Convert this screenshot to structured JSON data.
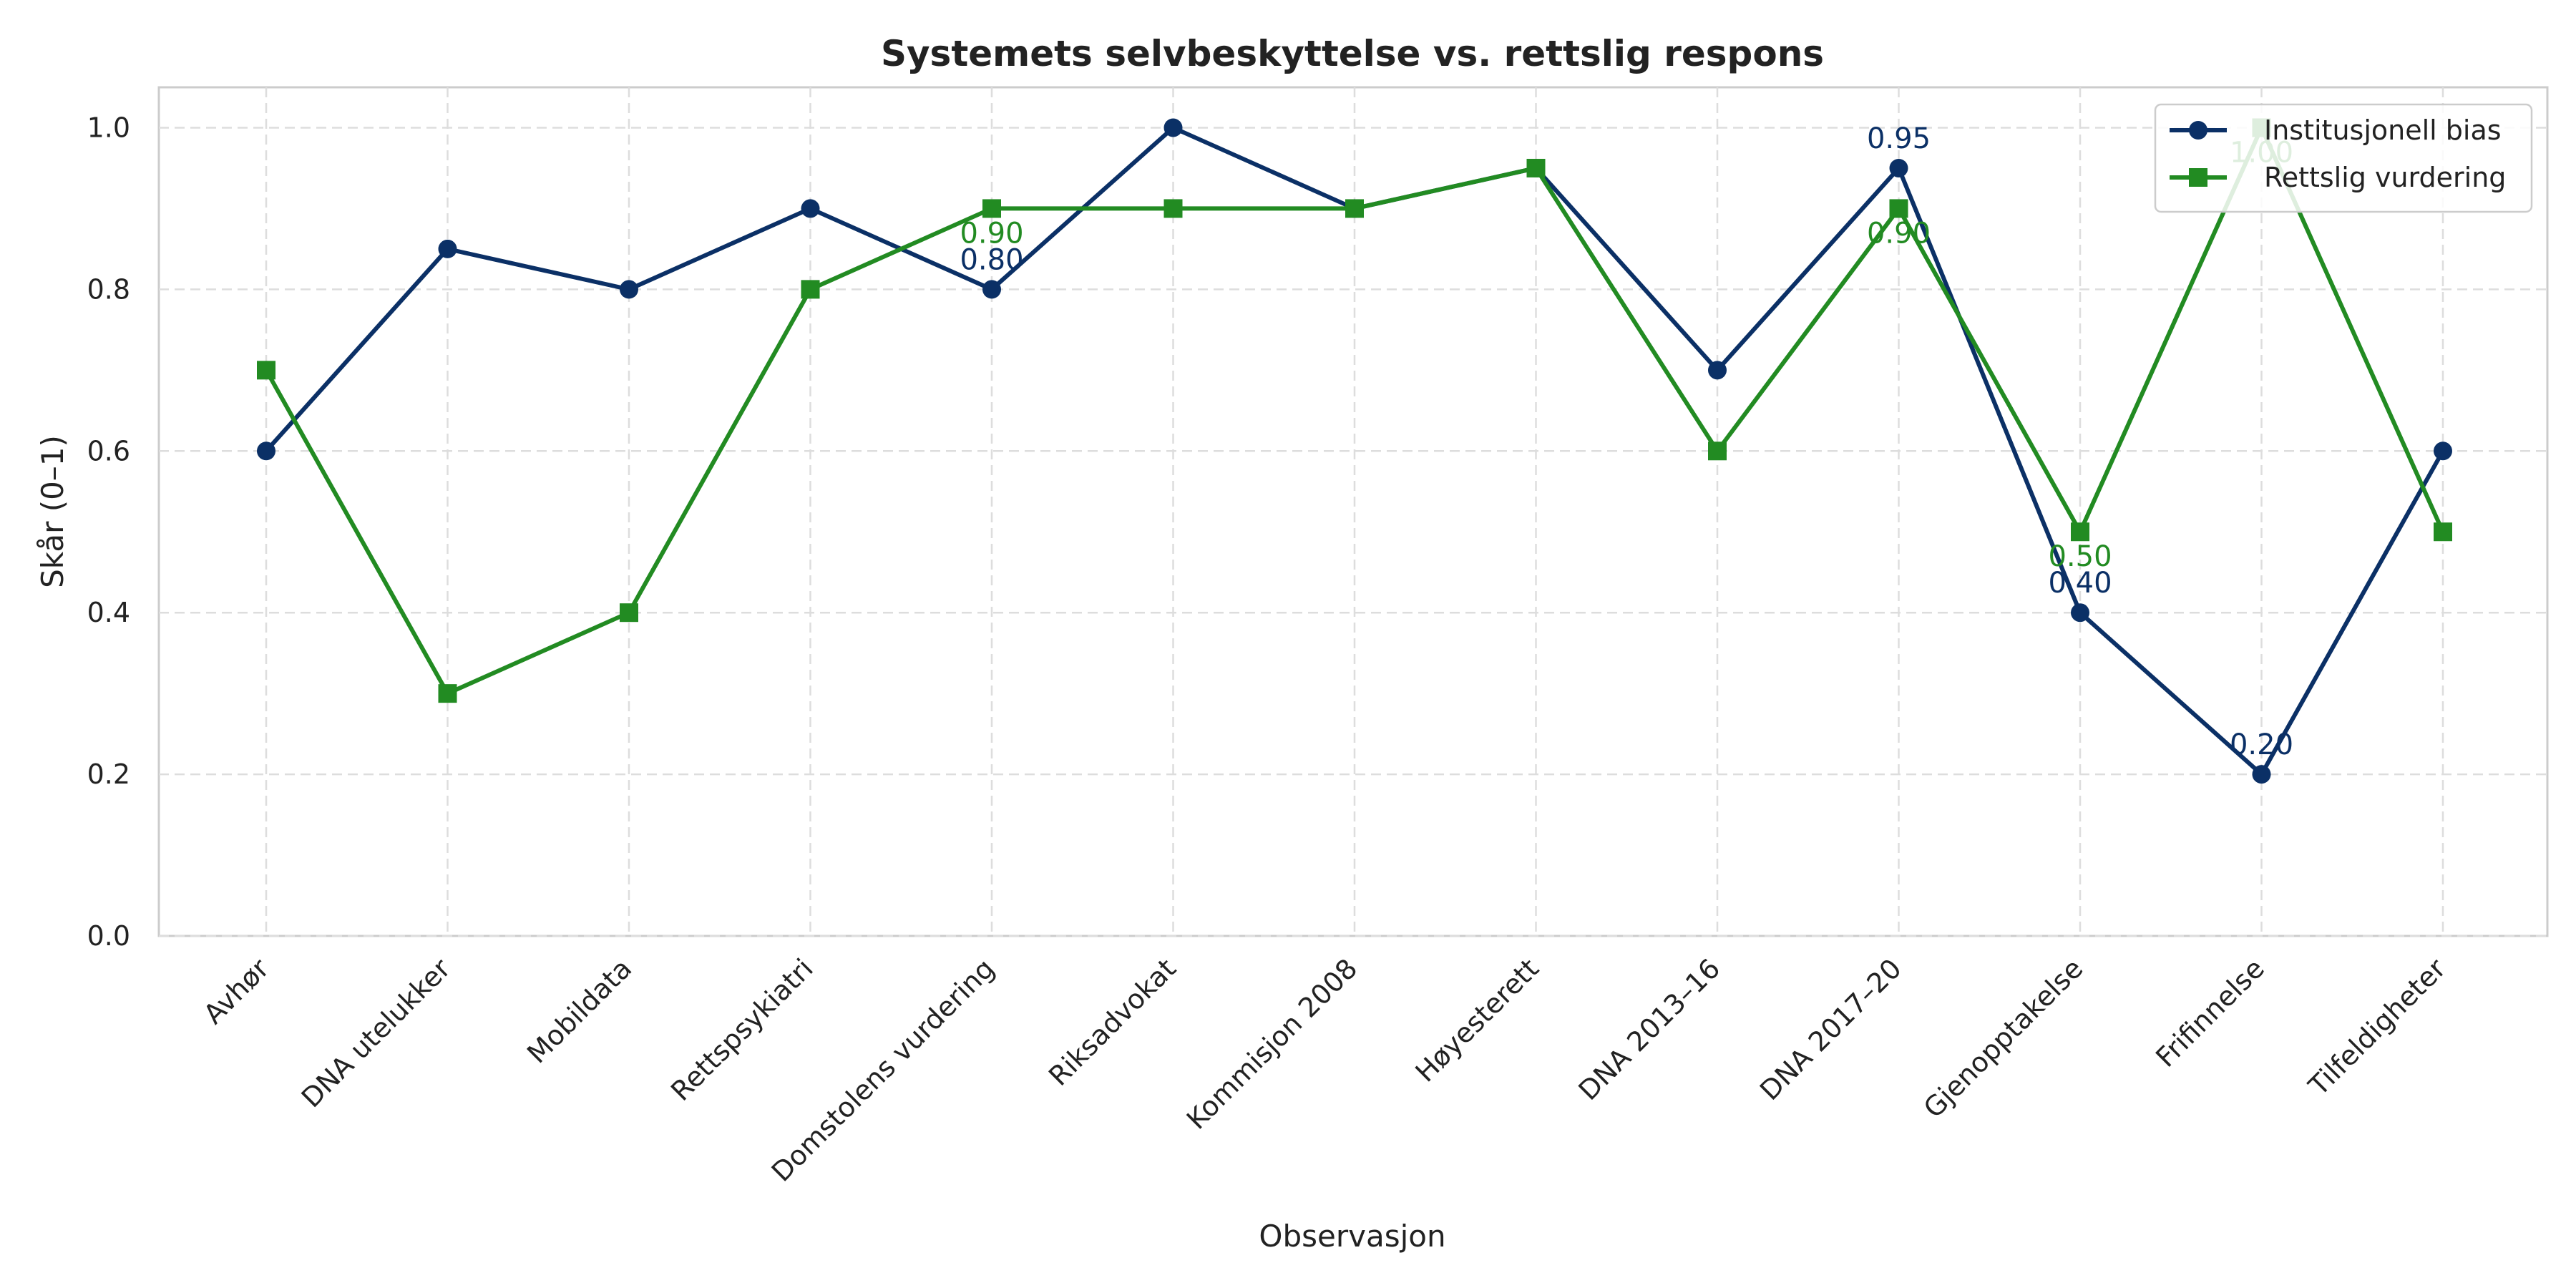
{
  "chart_data": {
    "type": "line",
    "title": "Systemets selvbeskyttelse vs. rettslig respons",
    "xlabel": "Observasjon",
    "ylabel": "Skår (0–1)",
    "categories": [
      "Avhør",
      "DNA utelukker",
      "Mobildata",
      "Rettspsykiatri",
      "Domstolens vurdering",
      "Riksadvokat",
      "Kommisjon 2008",
      "Høyesterett",
      "DNA 2013–16",
      "DNA 2017–20",
      "Gjenopptakelse",
      "Frifinnelse",
      "Tilfeldigheter"
    ],
    "ylim": [
      0,
      1.05
    ],
    "yticks": [
      "0.0",
      "0.2",
      "0.4",
      "0.6",
      "0.8",
      "1.0"
    ],
    "grid": true,
    "legend_position": "top-right",
    "series": [
      {
        "name": "Institusjonell bias",
        "color": "#0b3066",
        "marker": "circle",
        "values": [
          0.6,
          0.85,
          0.8,
          0.9,
          0.8,
          1.0,
          0.9,
          0.95,
          0.7,
          0.95,
          0.4,
          0.2,
          0.6
        ]
      },
      {
        "name": "Rettslig vurdering",
        "color": "#228b22",
        "marker": "square",
        "values": [
          0.7,
          0.3,
          0.4,
          0.8,
          0.9,
          0.9,
          0.9,
          0.95,
          0.6,
          0.9,
          0.5,
          1.0,
          0.5
        ]
      }
    ],
    "annotations": [
      {
        "series": 0,
        "index": 4,
        "text": "0.80",
        "position": "above"
      },
      {
        "series": 1,
        "index": 4,
        "text": "0.90",
        "position": "below"
      },
      {
        "series": 0,
        "index": 9,
        "text": "0.95",
        "position": "above"
      },
      {
        "series": 1,
        "index": 9,
        "text": "0.90",
        "position": "below"
      },
      {
        "series": 0,
        "index": 10,
        "text": "0.40",
        "position": "above"
      },
      {
        "series": 1,
        "index": 10,
        "text": "0.50",
        "position": "below"
      },
      {
        "series": 0,
        "index": 11,
        "text": "0.20",
        "position": "above"
      },
      {
        "series": 1,
        "index": 11,
        "text": "1.00",
        "position": "below"
      }
    ]
  }
}
